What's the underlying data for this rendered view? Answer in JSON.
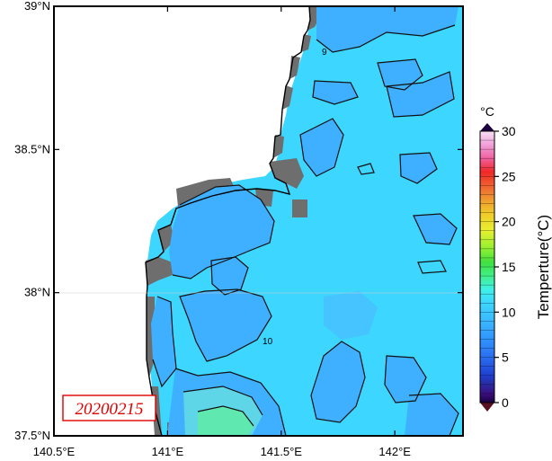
{
  "map": {
    "lon_range": [
      140.5,
      142.3
    ],
    "lat_range": [
      37.5,
      39.0
    ],
    "lon_ticks": [
      {
        "value": 140.5,
        "label": "140.5°E"
      },
      {
        "value": 141.0,
        "label": "141°E"
      },
      {
        "value": 141.5,
        "label": "141.5°E"
      },
      {
        "value": 142.0,
        "label": "142°E"
      }
    ],
    "lat_ticks": [
      {
        "value": 39.0,
        "label": "39°N"
      },
      {
        "value": 38.5,
        "label": "38.5°N"
      },
      {
        "value": 38.0,
        "label": "38°N"
      },
      {
        "value": 37.5,
        "label": "37.5°N"
      }
    ],
    "date_label": "20200215",
    "contour_labels": [
      {
        "text": "9",
        "lon": 141.69,
        "lat": 38.83
      },
      {
        "text": "10",
        "lon": 141.44,
        "lat": 37.82
      }
    ],
    "colors": {
      "land": "#ffffff",
      "coast_mask": "#6e6e6e",
      "sea_warm": "#3cd6ff",
      "sea_cool": "#3fb0ff",
      "sea_mid": "#46c4ff",
      "sea_teal": "#5ed6e8",
      "sea_green": "#5fe8b0"
    }
  },
  "colorbar": {
    "title": "Temperture(°C)",
    "unit": "°C",
    "min": 0,
    "max": 30,
    "ticks": [
      0,
      5,
      10,
      15,
      20,
      25,
      30
    ],
    "stops": [
      {
        "v": 0,
        "c": "#1c0040"
      },
      {
        "v": 1,
        "c": "#3a1080"
      },
      {
        "v": 2,
        "c": "#2a2aa0"
      },
      {
        "v": 3,
        "c": "#1f3fd0"
      },
      {
        "v": 5,
        "c": "#2a6ef0"
      },
      {
        "v": 7,
        "c": "#2f94ff"
      },
      {
        "v": 9,
        "c": "#3ab8ff"
      },
      {
        "v": 11,
        "c": "#3cd6ff"
      },
      {
        "v": 12.5,
        "c": "#3ff0e8"
      },
      {
        "v": 14,
        "c": "#40f08a"
      },
      {
        "v": 15.5,
        "c": "#40e040"
      },
      {
        "v": 17,
        "c": "#90f030"
      },
      {
        "v": 19,
        "c": "#e8f030"
      },
      {
        "v": 21,
        "c": "#f0c828"
      },
      {
        "v": 22.5,
        "c": "#f09830"
      },
      {
        "v": 24,
        "c": "#f06030"
      },
      {
        "v": 25.5,
        "c": "#f02828"
      },
      {
        "v": 27,
        "c": "#f060a0"
      },
      {
        "v": 28.5,
        "c": "#f0a0d8"
      },
      {
        "v": 30,
        "c": "#fae0f6"
      }
    ]
  }
}
